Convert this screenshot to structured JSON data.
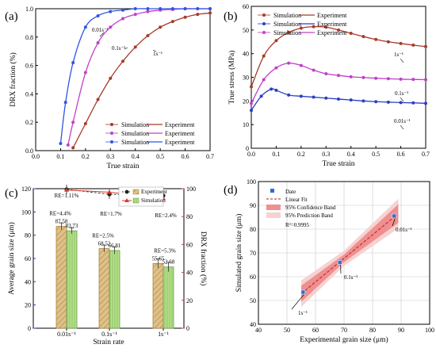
{
  "colors": {
    "dark_red": "#a63b2a",
    "red": "#d93a2b",
    "magenta": "#c040c8",
    "blue": "#2d54e6",
    "blue_series": "#2b3fc2",
    "hatch_fill": "#e0c089",
    "hatch_line": "#a8863e",
    "green_bar": "#b6e08a",
    "grid": "#c8c8c8",
    "c_left": "#2a35c9",
    "c_right": "#d93a2b",
    "band_pred": "#f6d2d2",
    "band_conf": "#ef8f8f",
    "fit": "#c11c1c",
    "pt": "#2f6dd6"
  },
  "chart_data": [
    {
      "panel": "(a)",
      "type": "line",
      "xlabel": "True strain",
      "ylabel": "DRX fraction (%)",
      "xlim": [
        0,
        0.7
      ],
      "ylim": [
        0,
        1
      ],
      "xticks": [
        "0.0",
        "0.1",
        "0.2",
        "0.3",
        "0.4",
        "0.5",
        "0.6",
        "0.7"
      ],
      "yticks": [
        "0.0",
        "0.2",
        "0.4",
        "0.6",
        "0.8",
        "1.0"
      ],
      "legend": [
        {
          "sim": "Simulation",
          "exp": "Experiment",
          "color": "#a63b2a"
        },
        {
          "sim": "Simulation",
          "exp": "Experiment",
          "color": "#c040c8"
        },
        {
          "sim": "Simulation",
          "exp": "Experiment",
          "color": "#2d54e6"
        }
      ],
      "series": [
        {
          "label": "1s⁻¹",
          "color": "#a63b2a",
          "x": [
            0.15,
            0.2,
            0.25,
            0.3,
            0.35,
            0.4,
            0.45,
            0.5,
            0.55,
            0.6,
            0.65,
            0.7
          ],
          "y": [
            0.02,
            0.19,
            0.36,
            0.51,
            0.63,
            0.73,
            0.81,
            0.87,
            0.91,
            0.94,
            0.96,
            0.97
          ]
        },
        {
          "label": "0.1s⁻¹",
          "color": "#c040c8",
          "x": [
            0.13,
            0.15,
            0.2,
            0.25,
            0.3,
            0.35,
            0.4,
            0.45,
            0.5,
            0.55,
            0.6,
            0.65,
            0.7
          ],
          "y": [
            0.04,
            0.2,
            0.55,
            0.76,
            0.87,
            0.93,
            0.96,
            0.98,
            0.99,
            0.995,
            1.0,
            1.0,
            1.0
          ]
        },
        {
          "label": "0.01s⁻¹",
          "color": "#2d54e6",
          "x": [
            0.1,
            0.12,
            0.15,
            0.2,
            0.25,
            0.3,
            0.35,
            0.4,
            0.45,
            0.5,
            0.55,
            0.6,
            0.65,
            0.7
          ],
          "y": [
            0.05,
            0.34,
            0.62,
            0.87,
            0.95,
            0.98,
            0.99,
            1.0,
            1.0,
            1.0,
            1.0,
            1.0,
            1.0,
            1.0
          ]
        }
      ]
    },
    {
      "panel": "(b)",
      "type": "line",
      "xlabel": "True strain",
      "ylabel": "True stress (MPa)",
      "xlim": [
        0,
        0.7
      ],
      "ylim": [
        0,
        60
      ],
      "xticks": [
        "0.0",
        "0.1",
        "0.2",
        "0.3",
        "0.4",
        "0.5",
        "0.6",
        "0.7"
      ],
      "yticks": [
        "0",
        "10",
        "20",
        "30",
        "40",
        "50",
        "60"
      ],
      "legend": [
        {
          "sim": "Simulation",
          "exp": "Experiment",
          "color": "#a63b2a"
        },
        {
          "sim": "Simulation",
          "exp": "Experiment",
          "color": "#2b3fc2"
        },
        {
          "sim": "Simulation",
          "exp": "Experiment",
          "color": "#c040c8"
        }
      ],
      "series": [
        {
          "label": "1s⁻¹",
          "color": "#a63b2a",
          "x": [
            0.0,
            0.05,
            0.1,
            0.15,
            0.2,
            0.25,
            0.3,
            0.35,
            0.4,
            0.45,
            0.5,
            0.55,
            0.6,
            0.65,
            0.7
          ],
          "y": [
            26,
            39,
            45.5,
            49,
            50.8,
            51.4,
            51.2,
            50,
            48.6,
            47.2,
            46,
            45,
            44.3,
            43.6,
            43
          ]
        },
        {
          "label": "0.1s⁻¹",
          "color": "#c040c8",
          "x": [
            0.0,
            0.05,
            0.1,
            0.15,
            0.2,
            0.25,
            0.3,
            0.35,
            0.4,
            0.45,
            0.5,
            0.55,
            0.6,
            0.65,
            0.7
          ],
          "y": [
            19,
            29,
            34,
            36,
            35,
            33,
            31.5,
            30.8,
            30.2,
            29.9,
            29.6,
            29.4,
            29.2,
            29.1,
            29
          ]
        },
        {
          "label": "0.01s⁻¹",
          "color": "#2b3fc2",
          "x": [
            0.0,
            0.04,
            0.08,
            0.1,
            0.15,
            0.2,
            0.25,
            0.3,
            0.35,
            0.4,
            0.45,
            0.5,
            0.55,
            0.6,
            0.65,
            0.7
          ],
          "y": [
            16,
            22,
            25,
            24.5,
            22.5,
            22,
            21.6,
            21.2,
            20.8,
            20.4,
            20,
            19.7,
            19.5,
            19.3,
            19.2,
            19
          ]
        }
      ]
    },
    {
      "panel": "(c)",
      "type": "bar",
      "xlabel": "Strain rate",
      "ylabel_left": "Average grain size (μm)",
      "ylabel_right": "DRX  fraction (%)",
      "categories": [
        "0.01s⁻¹",
        "0.1s⁻¹",
        "1s⁻¹"
      ],
      "ylim_left": [
        0,
        120
      ],
      "ylim_right": [
        0,
        100
      ],
      "yticks_left": [
        "0",
        "20",
        "40",
        "60",
        "80",
        "100",
        "120"
      ],
      "yticks_right": [
        "0",
        "20",
        "40",
        "60",
        "80",
        "100"
      ],
      "legend": [
        "Experiment",
        "Simulation"
      ],
      "series": [
        {
          "name": "Experiment",
          "values": [
            87.58,
            68.52,
            55.65
          ],
          "errors": [
            3,
            3,
            4
          ]
        },
        {
          "name": "Simulation",
          "values": [
            83.73,
            66.81,
            52.68
          ],
          "errors": [
            2.5,
            3,
            4
          ]
        }
      ],
      "bar_labels": [
        [
          "87.58",
          "83.73"
        ],
        [
          "68.52",
          "66.81"
        ],
        [
          "55.65",
          "52.68"
        ]
      ],
      "grain_re": [
        "RE=4.4%",
        "RE=2.5%",
        "RE=5.3%"
      ],
      "drx_exp": [
        99.5,
        96,
        95
      ],
      "drx_sim": [
        99,
        97.5,
        93
      ],
      "drx_re": [
        "RE=1.11%",
        "RE=1.7%",
        "RE=2.4%"
      ]
    },
    {
      "panel": "(d)",
      "type": "scatter",
      "xlabel": "Experimental grain size (μm)",
      "ylabel": "Simulated  grain size (μm)",
      "xlim": [
        40,
        100
      ],
      "ylim": [
        40,
        100
      ],
      "xticks": [
        "40",
        "50",
        "60",
        "70",
        "80",
        "90",
        "100"
      ],
      "yticks": [
        "40",
        "50",
        "60",
        "70",
        "80",
        "90",
        "100"
      ],
      "legend": [
        "Date",
        "Linear Fit",
        "95% Confidence Band",
        "95% Prediction Band"
      ],
      "r2": "R²=0.9995",
      "x": [
        55.65,
        68.52,
        87.58
      ],
      "y": [
        53.5,
        66,
        85.5
      ],
      "point_labels": [
        "1s⁻¹",
        "0.1s⁻¹",
        "0.01s⁻¹"
      ]
    }
  ]
}
